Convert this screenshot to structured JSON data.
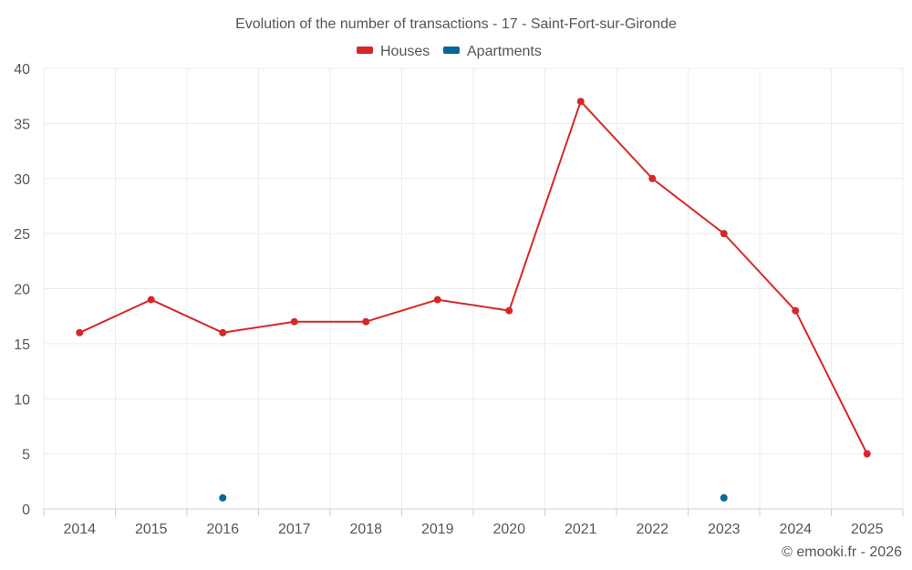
{
  "chart_data": {
    "type": "line",
    "title": "Evolution of the number of transactions - 17 - Saint-Fort-sur-Gironde",
    "categories": [
      "2014",
      "2015",
      "2016",
      "2017",
      "2018",
      "2019",
      "2020",
      "2021",
      "2022",
      "2023",
      "2024",
      "2025"
    ],
    "series": [
      {
        "name": "Houses",
        "color": "#d62728",
        "values": [
          16,
          19,
          16,
          17,
          17,
          19,
          18,
          37,
          30,
          25,
          18,
          5
        ]
      },
      {
        "name": "Apartments",
        "color": "#05679a",
        "values": [
          null,
          null,
          1,
          null,
          null,
          null,
          null,
          null,
          null,
          1,
          null,
          null
        ]
      }
    ],
    "ylim": [
      0,
      40
    ],
    "yticks": [
      0,
      5,
      10,
      15,
      20,
      25,
      30,
      35,
      40
    ],
    "xlabel": "",
    "ylabel": "",
    "grid": true,
    "legend": "top-center",
    "credit": "© emooki.fr - 2026"
  }
}
